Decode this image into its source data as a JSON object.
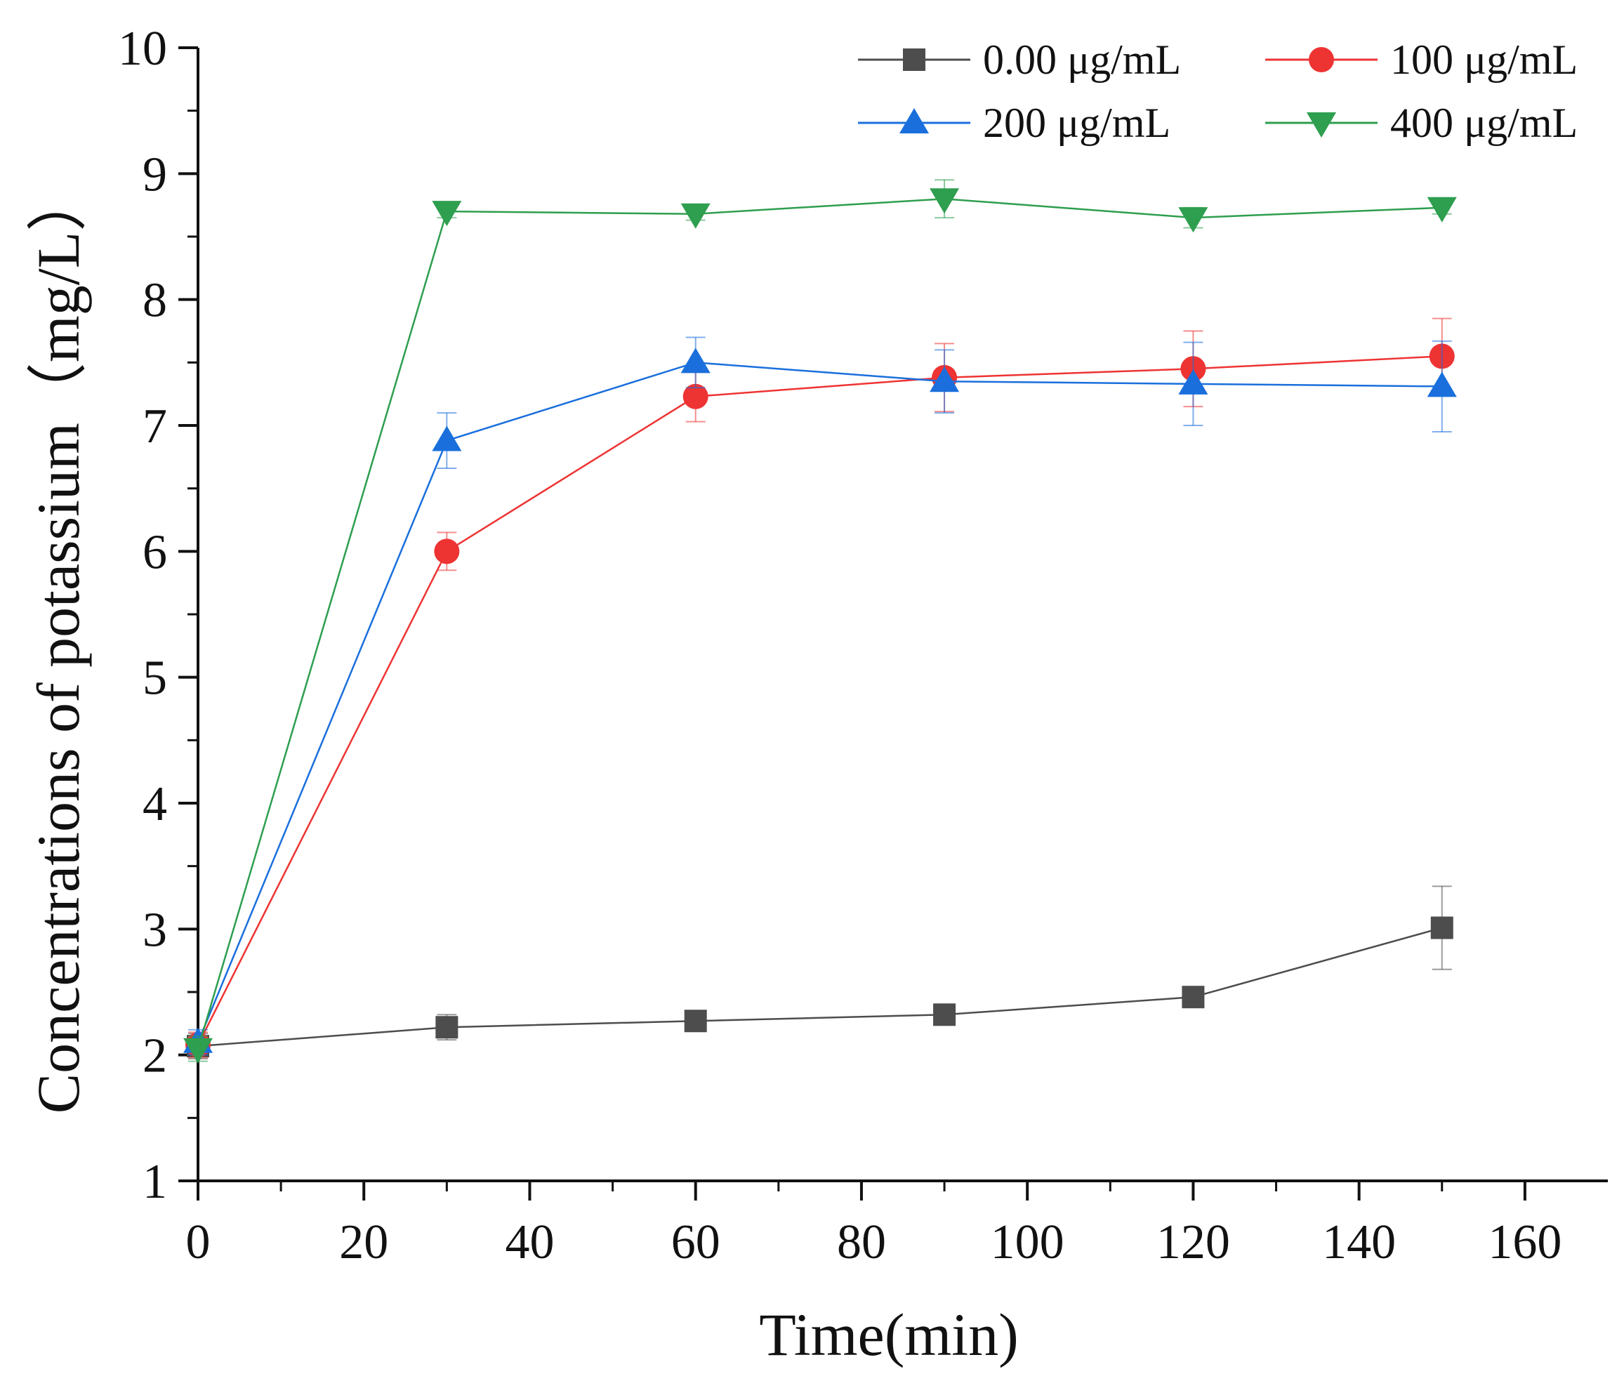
{
  "chart_data": {
    "type": "line",
    "title": "",
    "xlabel": "Time(min)",
    "ylabel": "Concentrations of potassium（mg/L）",
    "xlim": [
      0,
      170
    ],
    "ylim": [
      1,
      10
    ],
    "xticks": [
      0,
      20,
      40,
      60,
      80,
      100,
      120,
      140,
      160
    ],
    "yticks": [
      1,
      2,
      3,
      4,
      5,
      6,
      7,
      8,
      9,
      10
    ],
    "grid": false,
    "legend_position": "top-right",
    "x": [
      0,
      30,
      60,
      90,
      120,
      150
    ],
    "series": [
      {
        "name": "0.00 μg/mL",
        "color": "#4d4d4d",
        "marker": "square",
        "values": [
          2.07,
          2.22,
          2.27,
          2.32,
          2.46,
          3.01
        ],
        "error": [
          0.1,
          0.1,
          0.05,
          0.05,
          0.05,
          0.33
        ]
      },
      {
        "name": "100 μg/mL",
        "color": "#ee3333",
        "marker": "circle",
        "values": [
          2.08,
          6.0,
          7.23,
          7.38,
          7.45,
          7.55
        ],
        "error": [
          0.1,
          0.15,
          0.2,
          0.27,
          0.3,
          0.3
        ]
      },
      {
        "name": "200 μg/mL",
        "color": "#1a6fdc",
        "marker": "triangle-up",
        "values": [
          2.1,
          6.88,
          7.5,
          7.35,
          7.33,
          7.31
        ],
        "error": [
          0.1,
          0.22,
          0.2,
          0.25,
          0.33,
          0.36
        ]
      },
      {
        "name": "400 μg/mL",
        "color": "#2e9e4f",
        "marker": "triangle-down",
        "values": [
          2.05,
          8.7,
          8.68,
          8.8,
          8.65,
          8.73
        ],
        "error": [
          0.1,
          0.05,
          0.05,
          0.15,
          0.08,
          0.05
        ]
      }
    ]
  }
}
